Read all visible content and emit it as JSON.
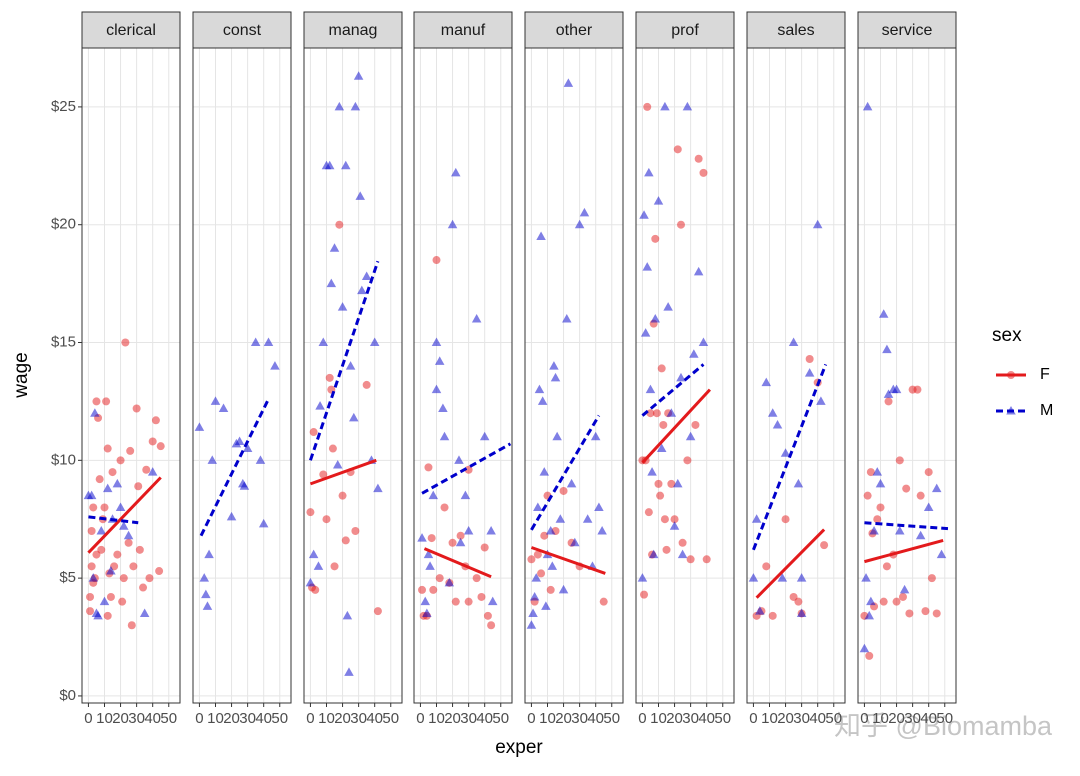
{
  "chart_data": {
    "type": "scatter",
    "xlabel": "exper",
    "ylabel": "wage",
    "legend_title": "sex",
    "watermark": "知乎 @Biomamba",
    "xlim": [
      -4,
      57
    ],
    "xticks": [
      0,
      10,
      20,
      30,
      40,
      50
    ],
    "ylim": [
      -0.3,
      27.5
    ],
    "yticks": [
      {
        "value": 0,
        "label": "$0"
      },
      {
        "value": 5,
        "label": "$5"
      },
      {
        "value": 10,
        "label": "$10"
      },
      {
        "value": 15,
        "label": "$15"
      },
      {
        "value": 20,
        "label": "$20"
      },
      {
        "value": 25,
        "label": "$25"
      }
    ],
    "grid": true,
    "legend": [
      {
        "name": "F",
        "color": "#e31a1c",
        "marker": "circle",
        "dash": false
      },
      {
        "name": "M",
        "color": "#0000cc",
        "marker": "triangle",
        "dash": true
      }
    ],
    "facets": [
      {
        "title": "clerical",
        "series": [
          {
            "name": "F",
            "x": [
              1,
              2,
              1,
              3,
              4,
              5,
              6,
              3,
              7,
              8,
              9,
              10,
              11,
              12,
              13,
              14,
              15,
              16,
              18,
              20,
              21,
              22,
              23,
              25,
              26,
              27,
              28,
              30,
              31,
              32,
              34,
              36,
              38,
              40,
              42,
              44,
              45,
              2,
              5,
              12
            ],
            "values": [
              4.2,
              5.5,
              3.6,
              4.8,
              5.0,
              12.5,
              11.8,
              8.0,
              9.2,
              6.2,
              7.5,
              8.0,
              12.5,
              10.5,
              5.2,
              4.2,
              9.5,
              5.5,
              6.0,
              10.0,
              4.0,
              5.0,
              15.0,
              6.5,
              10.4,
              3.0,
              5.5,
              12.2,
              8.9,
              6.2,
              4.6,
              9.6,
              5.0,
              10.8,
              11.7,
              5.3,
              10.6,
              7.0,
              6.0,
              3.4
            ]
          },
          {
            "name": "M",
            "x": [
              0,
              2,
              3,
              5,
              8,
              10,
              12,
              15,
              18,
              20,
              22,
              25,
              40,
              35,
              4,
              6,
              14
            ],
            "values": [
              8.5,
              8.5,
              5.0,
              3.5,
              7.0,
              4.0,
              8.8,
              7.5,
              9.0,
              8.0,
              7.2,
              6.8,
              9.5,
              3.5,
              12.0,
              3.4,
              5.3
            ]
          }
        ],
        "fits": [
          {
            "name": "F",
            "x": [
              0,
              45
            ],
            "values": [
              6.08,
              9.27
            ]
          },
          {
            "name": "M",
            "x": [
              0,
              31
            ],
            "values": [
              7.6,
              7.35
            ]
          }
        ]
      },
      {
        "title": "const",
        "series": [
          {
            "name": "M",
            "x": [
              0,
              3,
              4,
              5,
              6,
              8,
              10,
              15,
              20,
              23,
              25,
              27,
              28,
              30,
              35,
              38,
              40,
              43,
              47
            ],
            "values": [
              11.4,
              5.0,
              4.3,
              3.8,
              6.0,
              10.0,
              12.5,
              12.2,
              7.6,
              10.7,
              10.8,
              9.0,
              8.9,
              10.5,
              15.0,
              10.0,
              7.3,
              15.0,
              14.0
            ]
          }
        ],
        "fits": [
          {
            "name": "M",
            "x": [
              1,
              43
            ],
            "values": [
              6.8,
              12.6
            ]
          }
        ]
      },
      {
        "title": "manag",
        "series": [
          {
            "name": "F",
            "x": [
              0,
              1,
              2,
              3,
              8,
              12,
              13,
              14,
              18,
              20,
              22,
              25,
              28,
              35,
              42,
              15,
              10
            ],
            "values": [
              7.8,
              4.6,
              11.2,
              4.5,
              9.4,
              13.5,
              13.0,
              10.5,
              20.0,
              8.5,
              6.6,
              9.5,
              7.0,
              13.2,
              3.6,
              5.5,
              7.5
            ]
          },
          {
            "name": "M",
            "x": [
              0,
              2,
              5,
              8,
              10,
              12,
              13,
              15,
              17,
              18,
              20,
              22,
              23,
              24,
              25,
              27,
              28,
              30,
              31,
              32,
              35,
              40,
              42,
              6,
              38
            ],
            "values": [
              4.8,
              6.0,
              5.5,
              15.0,
              22.5,
              22.5,
              17.5,
              19.0,
              9.8,
              25.0,
              16.5,
              22.5,
              3.4,
              1.0,
              14.0,
              11.8,
              25.0,
              26.3,
              21.2,
              17.2,
              17.8,
              15.0,
              8.8,
              12.3,
              10.0
            ]
          }
        ],
        "fits": [
          {
            "name": "F",
            "x": [
              0,
              41
            ],
            "values": [
              9.0,
              10.0
            ]
          },
          {
            "name": "M",
            "x": [
              0,
              42
            ],
            "values": [
              10.0,
              18.45
            ]
          }
        ]
      },
      {
        "title": "manuf",
        "series": [
          {
            "name": "F",
            "x": [
              1,
              2,
              4,
              5,
              7,
              8,
              10,
              12,
              15,
              18,
              20,
              22,
              25,
              28,
              30,
              35,
              38,
              40,
              42,
              44,
              30
            ],
            "values": [
              4.5,
              3.4,
              3.4,
              9.7,
              6.7,
              4.5,
              18.5,
              5.0,
              8.0,
              4.8,
              6.5,
              4.0,
              6.8,
              5.5,
              4.0,
              5.0,
              4.2,
              6.3,
              3.4,
              3.0,
              9.6
            ]
          },
          {
            "name": "M",
            "x": [
              1,
              3,
              4,
              6,
              8,
              10,
              12,
              14,
              15,
              18,
              20,
              22,
              24,
              25,
              28,
              30,
              35,
              40,
              44,
              45,
              10,
              5
            ],
            "values": [
              6.7,
              4.0,
              3.5,
              5.5,
              8.5,
              13.0,
              14.2,
              12.2,
              11.0,
              4.8,
              20.0,
              22.2,
              10.0,
              6.5,
              8.5,
              7.0,
              16.0,
              11.0,
              7.0,
              4.0,
              15.0,
              6.0
            ]
          }
        ],
        "fits": [
          {
            "name": "F",
            "x": [
              2.5,
              44
            ],
            "values": [
              6.25,
              5.06
            ]
          },
          {
            "name": "M",
            "x": [
              1,
              56
            ],
            "values": [
              8.6,
              10.7
            ]
          }
        ]
      },
      {
        "title": "other",
        "series": [
          {
            "name": "F",
            "x": [
              0,
              2,
              4,
              6,
              10,
              12,
              15,
              20,
              25,
              30,
              45,
              8
            ],
            "values": [
              5.8,
              4.0,
              6.0,
              5.2,
              8.5,
              4.5,
              7.0,
              8.7,
              6.5,
              5.5,
              4.0,
              6.8
            ]
          },
          {
            "name": "M",
            "x": [
              0,
              1,
              2,
              3,
              4,
              5,
              6,
              7,
              8,
              10,
              12,
              14,
              15,
              16,
              18,
              20,
              22,
              23,
              25,
              27,
              30,
              33,
              35,
              38,
              40,
              42,
              44,
              9,
              13
            ],
            "values": [
              3.0,
              3.5,
              4.2,
              5.0,
              8.0,
              13.0,
              19.5,
              12.5,
              9.5,
              6.0,
              7.0,
              14.0,
              13.5,
              11.0,
              7.5,
              4.5,
              16.0,
              26.0,
              9.0,
              6.5,
              20.0,
              20.5,
              7.5,
              5.5,
              11.0,
              8.0,
              7.0,
              3.8,
              5.5
            ]
          }
        ],
        "fits": [
          {
            "name": "F",
            "x": [
              0,
              46
            ],
            "values": [
              6.3,
              5.2
            ]
          },
          {
            "name": "M",
            "x": [
              0,
              42
            ],
            "values": [
              7.05,
              11.9
            ]
          }
        ]
      },
      {
        "title": "prof",
        "series": [
          {
            "name": "F",
            "x": [
              0,
              1,
              3,
              4,
              5,
              6,
              7,
              8,
              9,
              10,
              12,
              13,
              14,
              15,
              16,
              18,
              20,
              22,
              24,
              25,
              28,
              30,
              33,
              35,
              38,
              40,
              11,
              2
            ],
            "values": [
              10.0,
              4.3,
              25.0,
              7.8,
              12.0,
              6.0,
              15.8,
              19.4,
              12.0,
              9.0,
              13.9,
              11.5,
              7.5,
              6.2,
              12.0,
              9.0,
              7.5,
              23.2,
              20.0,
              6.5,
              10.0,
              5.8,
              11.5,
              22.8,
              22.2,
              5.8,
              8.5,
              10.0
            ]
          },
          {
            "name": "M",
            "x": [
              0,
              1,
              2,
              3,
              4,
              5,
              6,
              8,
              10,
              12,
              14,
              16,
              18,
              20,
              22,
              24,
              25,
              28,
              30,
              32,
              35,
              38,
              7
            ],
            "values": [
              5.0,
              20.4,
              15.4,
              18.2,
              22.2,
              13.0,
              9.5,
              16.0,
              21.0,
              10.5,
              25.0,
              16.5,
              12.0,
              7.2,
              9.0,
              13.5,
              6.0,
              25.0,
              11.0,
              14.5,
              18.0,
              15.0,
              6.0
            ]
          }
        ],
        "fits": [
          {
            "name": "F",
            "x": [
              0,
              42
            ],
            "values": [
              9.9,
              13.0
            ]
          },
          {
            "name": "M",
            "x": [
              0,
              38
            ],
            "values": [
              11.9,
              14.07
            ]
          }
        ]
      },
      {
        "title": "sales",
        "series": [
          {
            "name": "F",
            "x": [
              2,
              5,
              8,
              12,
              20,
              25,
              30,
              35,
              40,
              44,
              28
            ],
            "values": [
              3.4,
              3.6,
              5.5,
              3.4,
              7.5,
              4.2,
              3.5,
              14.3,
              13.3,
              6.4,
              4.0
            ]
          },
          {
            "name": "M",
            "x": [
              0,
              2,
              4,
              8,
              12,
              15,
              18,
              20,
              25,
              28,
              30,
              35,
              40,
              42,
              30
            ],
            "values": [
              5.0,
              7.5,
              3.6,
              13.3,
              12.0,
              11.5,
              5.0,
              10.3,
              15.0,
              9.0,
              5.0,
              13.7,
              20.0,
              12.5,
              3.5
            ]
          }
        ],
        "fits": [
          {
            "name": "F",
            "x": [
              2,
              44
            ],
            "values": [
              4.17,
              7.06
            ]
          },
          {
            "name": "M",
            "x": [
              0,
              45
            ],
            "values": [
              6.2,
              14.07
            ]
          }
        ]
      },
      {
        "title": "service",
        "series": [
          {
            "name": "F",
            "x": [
              0,
              2,
              3,
              4,
              5,
              6,
              8,
              10,
              12,
              14,
              15,
              18,
              20,
              22,
              24,
              26,
              28,
              30,
              33,
              35,
              38,
              40,
              42,
              45
            ],
            "values": [
              3.4,
              8.5,
              1.7,
              9.5,
              6.9,
              3.8,
              7.5,
              8.0,
              4.0,
              5.5,
              12.5,
              6.0,
              4.0,
              10.0,
              4.2,
              8.8,
              3.5,
              13.0,
              13.0,
              8.5,
              3.6,
              9.5,
              5.0,
              3.5
            ]
          },
          {
            "name": "M",
            "x": [
              0,
              1,
              2,
              4,
              6,
              8,
              10,
              12,
              14,
              15,
              18,
              20,
              22,
              25,
              35,
              40,
              45,
              48,
              3
            ],
            "values": [
              2.0,
              5.0,
              25.0,
              4.0,
              7.0,
              9.5,
              9.0,
              16.2,
              14.7,
              12.8,
              13.0,
              13.0,
              7.0,
              4.5,
              6.8,
              8.0,
              8.8,
              6.0,
              3.4
            ]
          }
        ],
        "fits": [
          {
            "name": "F",
            "x": [
              0,
              49
            ],
            "values": [
              5.7,
              6.6
            ]
          },
          {
            "name": "M",
            "x": [
              0,
              52
            ],
            "values": [
              7.35,
              7.1
            ]
          }
        ]
      }
    ]
  }
}
